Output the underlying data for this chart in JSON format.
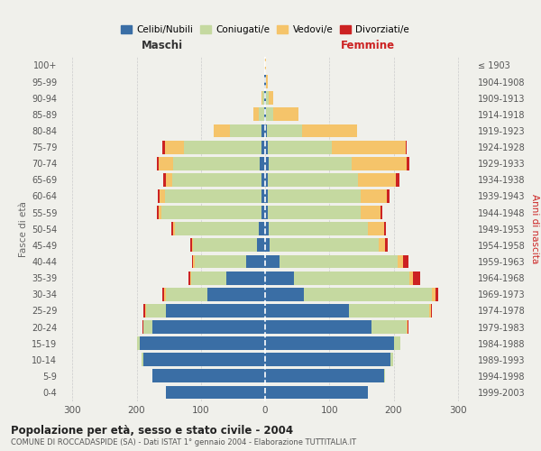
{
  "age_groups": [
    "0-4",
    "5-9",
    "10-14",
    "15-19",
    "20-24",
    "25-29",
    "30-34",
    "35-39",
    "40-44",
    "45-49",
    "50-54",
    "55-59",
    "60-64",
    "65-69",
    "70-74",
    "75-79",
    "80-84",
    "85-89",
    "90-94",
    "95-99",
    "100+"
  ],
  "birth_years": [
    "1999-2003",
    "1994-1998",
    "1989-1993",
    "1984-1988",
    "1979-1983",
    "1974-1978",
    "1969-1973",
    "1964-1968",
    "1959-1963",
    "1954-1958",
    "1949-1953",
    "1944-1948",
    "1939-1943",
    "1934-1938",
    "1929-1933",
    "1924-1928",
    "1919-1923",
    "1914-1918",
    "1909-1913",
    "1904-1908",
    "≤ 1903"
  ],
  "male": {
    "celibi": [
      155,
      175,
      190,
      195,
      175,
      155,
      90,
      60,
      30,
      12,
      10,
      6,
      6,
      5,
      8,
      6,
      5,
      2,
      1,
      1,
      0
    ],
    "coniugati": [
      0,
      0,
      2,
      4,
      15,
      30,
      65,
      55,
      80,
      100,
      130,
      155,
      150,
      140,
      135,
      120,
      50,
      8,
      3,
      0,
      0
    ],
    "vedovi": [
      0,
      0,
      0,
      0,
      0,
      2,
      2,
      2,
      2,
      2,
      3,
      5,
      8,
      10,
      22,
      30,
      25,
      8,
      2,
      0,
      0
    ],
    "divorziati": [
      0,
      0,
      0,
      0,
      1,
      2,
      3,
      3,
      2,
      2,
      3,
      3,
      3,
      3,
      3,
      4,
      0,
      0,
      0,
      0,
      0
    ]
  },
  "female": {
    "nubili": [
      160,
      185,
      195,
      200,
      165,
      130,
      60,
      45,
      22,
      7,
      5,
      4,
      4,
      4,
      5,
      4,
      3,
      2,
      1,
      1,
      0
    ],
    "coniugate": [
      0,
      1,
      4,
      10,
      55,
      125,
      200,
      180,
      185,
      170,
      155,
      145,
      145,
      140,
      130,
      100,
      55,
      10,
      4,
      1,
      0
    ],
    "vedove": [
      0,
      0,
      0,
      1,
      2,
      3,
      5,
      5,
      8,
      10,
      25,
      30,
      40,
      60,
      85,
      115,
      85,
      40,
      8,
      2,
      1
    ],
    "divorziate": [
      0,
      0,
      0,
      0,
      1,
      2,
      5,
      12,
      8,
      4,
      3,
      4,
      4,
      5,
      5,
      2,
      0,
      0,
      0,
      0,
      0
    ]
  },
  "colors": {
    "celibi_nubili": "#3a6ea5",
    "coniugati": "#c5d9a0",
    "vedovi": "#f5c46a",
    "divorziati": "#cc2222"
  },
  "title": "Popolazione per età, sesso e stato civile - 2004",
  "subtitle": "COMUNE DI ROCCADASPIDE (SA) - Dati ISTAT 1° gennaio 2004 - Elaborazione TUTTITALIA.IT",
  "xlabel_left": "Maschi",
  "xlabel_right": "Femmine",
  "ylabel_left": "Fasce di età",
  "ylabel_right": "Anni di nascita",
  "xlim": 320,
  "bg_color": "#f0f0eb",
  "grid_color": "#cccccc"
}
